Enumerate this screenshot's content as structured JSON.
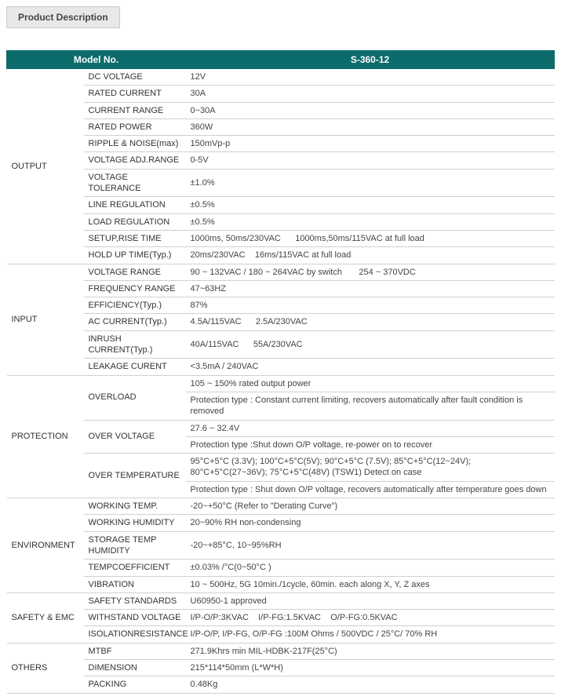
{
  "section_title": "Product Description",
  "header": {
    "model_label": "Model No.",
    "model_value": "S-360-12"
  },
  "header_bg": "#0c6b6b",
  "categories": [
    {
      "name": "OUTPUT",
      "rows": [
        {
          "param": "DC VOLTAGE",
          "value": "12V"
        },
        {
          "param": "RATED CURRENT",
          "value": "30A"
        },
        {
          "param": "CURRENT RANGE",
          "value": "0~30A"
        },
        {
          "param": "RATED POWER",
          "value": "360W"
        },
        {
          "param": "RIPPLE & NOISE(max)",
          "value": "150mVp-p"
        },
        {
          "param": "VOLTAGE ADJ.RANGE",
          "value": "0-5V"
        },
        {
          "param": "VOLTAGE TOLERANCE",
          "value": "±1.0%"
        },
        {
          "param": "LINE REGULATION",
          "value": "±0.5%"
        },
        {
          "param": "LOAD REGULATION",
          "value": "±0.5%"
        },
        {
          "param": "SETUP,RISE TIME",
          "value": "1000ms, 50ms/230VAC      1000ms,50ms/115VAC  at full load"
        },
        {
          "param": "HOLD UP TIME(Typ.)",
          "value": "20ms/230VAC    16ms/115VAC at full load"
        }
      ]
    },
    {
      "name": "INPUT",
      "rows": [
        {
          "param": "VOLTAGE RANGE",
          "value": "90 ~ 132VAC / 180 ~ 264VAC by switch       254 ~ 370VDC"
        },
        {
          "param": "FREQUENCY RANGE",
          "value": "47~63HZ"
        },
        {
          "param": "EFFICIENCY(Typ.)",
          "value": "87%"
        },
        {
          "param": "AC CURRENT(Typ.)",
          "value": "4.5A/115VAC      2.5A/230VAC"
        },
        {
          "param": "INRUSH CURRENT(Typ.)",
          "value": "40A/115VAC      55A/230VAC"
        },
        {
          "param": "LEAKAGE CURENT",
          "value": "<3.5mA / 240VAC"
        }
      ]
    },
    {
      "name": "PROTECTION",
      "rows": [
        {
          "param": "OVERLOAD",
          "param_rowspan": 2,
          "value": "105 ~ 150% rated output power"
        },
        {
          "value": "Protection type : Constant current limiting, recovers automatically after fault condition is removed"
        },
        {
          "param": "OVER VOLTAGE",
          "param_rowspan": 2,
          "value": "27.6 ~ 32.4V"
        },
        {
          "value": "Protection type :Shut down O/P voltage, re-power on to recover"
        },
        {
          "param": "OVER TEMPERATURE",
          "param_rowspan": 2,
          "value": "95°C+5°C (3.3V); 100°C+5°C(5V); 90°C+5°C (7.5V); 85°C+5°C(12~24V); 80°C+5°C(27~36V); 75°C+5°C(48V) (TSW1) Detect on case"
        },
        {
          "value": "Protection type : Shut down O/P voltage, recovers automatically after temperature goes down"
        }
      ]
    },
    {
      "name": "ENVIRONMENT",
      "rows": [
        {
          "param": "WORKING TEMP.",
          "value": "-20~+50°C (Refer to \"Derating Curve\")"
        },
        {
          "param": "WORKING HUMIDITY",
          "value": "20~90% RH non-condensing"
        },
        {
          "param": "STORAGE TEMP HUMIDITY",
          "value": "-20~+85°C, 10~95%RH"
        },
        {
          "param": "TEMPCOEFFICIENT",
          "value": "±0.03% /°C(0~50°C )"
        },
        {
          "param": "VIBRATION",
          "value": "10 ~ 500Hz, 5G 10min./1cycle, 60min. each along X, Y, Z axes"
        }
      ]
    },
    {
      "name": "SAFETY & EMC",
      "rows": [
        {
          "param": "SAFETY STANDARDS",
          "value": "U60950-1 approved"
        },
        {
          "param": "WITHSTAND VOLTAGE",
          "value": "I/P-O/P:3KVAC    I/P-FG:1.5KVAC    O/P-FG:0.5KVAC"
        },
        {
          "param": "ISOLATIONRESISTANCE",
          "value": "I/P-O/P, I/P-FG, O/P-FG :100M Ohms / 500VDC / 25°C/ 70% RH"
        }
      ]
    },
    {
      "name": "OTHERS",
      "rows": [
        {
          "param": "MTBF",
          "value": "271.9Khrs min MIL-HDBK-217F(25°C)"
        },
        {
          "param": "DIMENSION",
          "value": "215*114*50mm (L*W*H)"
        },
        {
          "param": "PACKING",
          "value": "0.48Kg"
        }
      ]
    }
  ]
}
